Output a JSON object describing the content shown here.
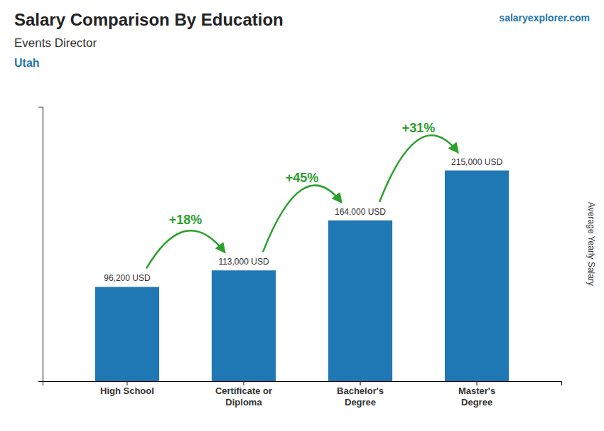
{
  "chart_data": {
    "type": "bar",
    "title": "Salary Comparison By Education",
    "subtitle": "Events Director",
    "ylabel": "Average Yearly Salary",
    "annotations": [
      {
        "text": "Utah"
      },
      {
        "text": "salaryexplorer.com"
      },
      {
        "text": "+18%",
        "from": "High School",
        "to": "Certificate or\nDiploma"
      },
      {
        "text": "+45%",
        "from": "Certificate or\nDiploma",
        "to": "Bachelor's\nDegree"
      },
      {
        "text": "+31%",
        "from": "Bachelor's\nDegree",
        "to": "Master's\nDegree"
      }
    ],
    "categories": [
      "High School",
      "Certificate or\nDiploma",
      "Bachelor's\nDegree",
      "Master's\nDegree"
    ],
    "values": [
      96200,
      113000,
      164000,
      215000
    ],
    "value_labels": [
      "96,200 USD",
      "113,000 USD",
      "164,000 USD",
      "215,000 USD"
    ],
    "data_labels": true,
    "ylim": [
      0,
      280000
    ],
    "tick_labels": "x",
    "grid": false
  }
}
